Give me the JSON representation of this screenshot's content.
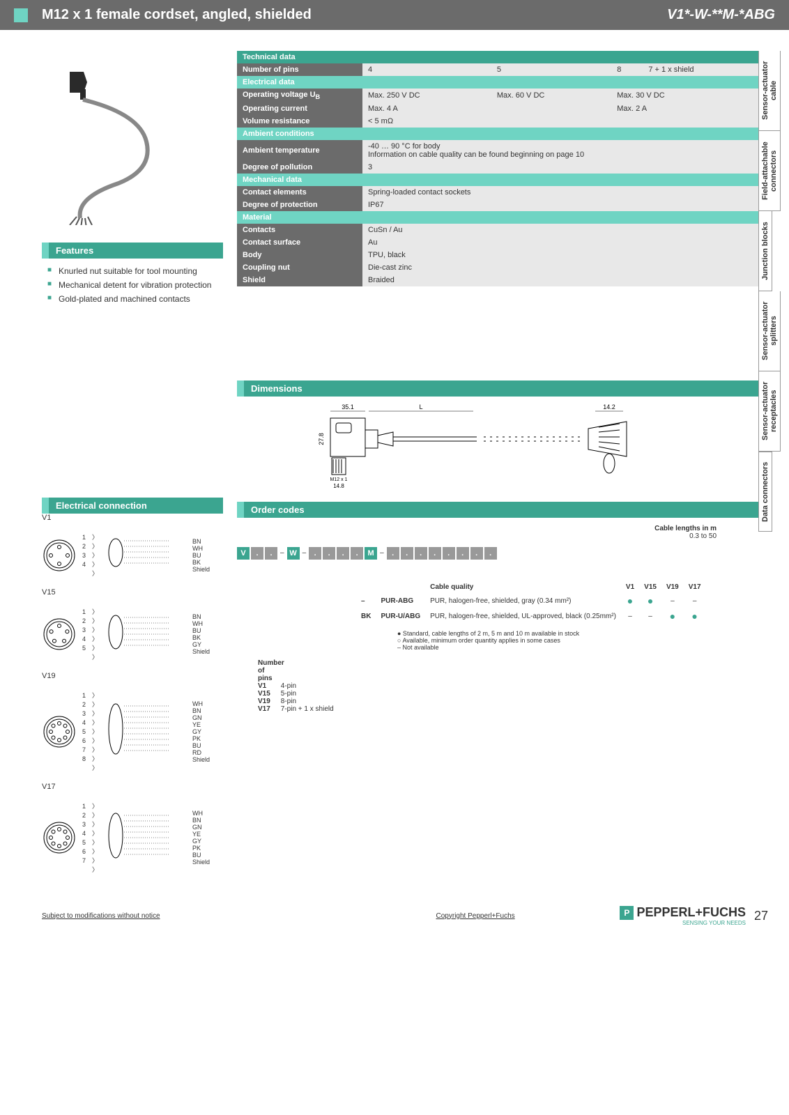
{
  "header": {
    "title": "M12 x 1 female cordset, angled, shielded",
    "code": "V1*-W-**M-*ABG"
  },
  "sidebar": [
    "Sensor-actuator cable",
    "Field-attachable connectors",
    "Junction blocks",
    "Sensor-actuator splitters",
    "Sensor-actuator receptacles",
    "Data connectors"
  ],
  "features": {
    "heading": "Features",
    "items": [
      "Knurled nut suitable for tool mounting",
      "Mechanical detent for vibration protection",
      "Gold-plated and machined contacts"
    ]
  },
  "tech": {
    "heading": "Technical data",
    "rows": [
      {
        "type": "label",
        "label": "Number of pins",
        "cells": [
          "4",
          "5",
          "8",
          "7 + 1 x shield"
        ]
      },
      {
        "type": "sub",
        "label": "Electrical data"
      },
      {
        "type": "label",
        "label": "Operating voltage UB",
        "cells": [
          "Max. 250 V DC",
          "Max. 60 V DC",
          "Max. 30 V DC",
          ""
        ],
        "merge": [
          0,
          0,
          1,
          1
        ]
      },
      {
        "type": "label",
        "label": "Operating current",
        "cells": [
          "Max. 4 A",
          "",
          "Max. 2 A",
          ""
        ],
        "merge": [
          1,
          1,
          1,
          1
        ]
      },
      {
        "type": "label",
        "label": "Volume resistance",
        "cells": [
          "< 5 mΩ"
        ],
        "span": 4
      },
      {
        "type": "sub",
        "label": "Ambient conditions"
      },
      {
        "type": "label",
        "label": "Ambient temperature",
        "cells": [
          "-40 … 90 °C for body\nInformation on cable quality can be found beginning on page 10"
        ],
        "span": 4
      },
      {
        "type": "label",
        "label": "Degree of pollution",
        "cells": [
          "3"
        ],
        "span": 4
      },
      {
        "type": "sub",
        "label": "Mechanical data"
      },
      {
        "type": "label",
        "label": "Contact elements",
        "cells": [
          "Spring-loaded contact sockets"
        ],
        "span": 4
      },
      {
        "type": "label",
        "label": "Degree of protection",
        "cells": [
          "IP67"
        ],
        "span": 4
      },
      {
        "type": "sub",
        "label": "Material"
      },
      {
        "type": "label",
        "label": "  Contacts",
        "cells": [
          "CuSn / Au"
        ],
        "span": 4
      },
      {
        "type": "label",
        "label": "  Contact surface",
        "cells": [
          "Au"
        ],
        "span": 4
      },
      {
        "type": "label",
        "label": "  Body",
        "cells": [
          "TPU, black"
        ],
        "span": 4
      },
      {
        "type": "label",
        "label": "  Coupling nut",
        "cells": [
          "Die-cast zinc"
        ],
        "span": 4
      },
      {
        "type": "label",
        "label": "Shield",
        "cells": [
          "Braided"
        ],
        "span": 4
      }
    ]
  },
  "dimensions": {
    "heading": "Dimensions",
    "values": {
      "w1": "35.1",
      "L": "L",
      "w2": "14.2",
      "h": "27.8",
      "thread": "M12 x 1",
      "tw": "14.8"
    }
  },
  "electrical": {
    "heading": "Electrical connection",
    "connectors": [
      {
        "name": "V1",
        "pins": 4,
        "colors": [
          "BN",
          "WH",
          "BU",
          "BK",
          "Shield"
        ]
      },
      {
        "name": "V15",
        "pins": 5,
        "colors": [
          "BN",
          "WH",
          "BU",
          "BK",
          "GY",
          "Shield"
        ]
      },
      {
        "name": "V19",
        "pins": 8,
        "colors": [
          "WH",
          "BN",
          "GN",
          "YE",
          "GY",
          "PK",
          "BU",
          "RD",
          "Shield"
        ]
      },
      {
        "name": "V17",
        "pins": 8,
        "colors": [
          "WH",
          "BN",
          "GN",
          "YE",
          "GY",
          "PK",
          "BU",
          "Shield"
        ]
      }
    ]
  },
  "order": {
    "heading": "Order codes",
    "code_template": [
      "V",
      ".",
      ".",
      " – ",
      "W",
      " – ",
      ".",
      ".",
      ".",
      ".",
      "M",
      " – ",
      ".",
      ".",
      ".",
      ".",
      ".",
      ".",
      ".",
      "."
    ],
    "cable_lengths_label": "Cable lengths in m",
    "cable_lengths_value": "0.3 to 50",
    "cable_quality": {
      "heading": "Cable quality",
      "cols": [
        "V1",
        "V15",
        "V19",
        "V17"
      ],
      "rows": [
        {
          "code": "–",
          "name": "PUR-ABG",
          "desc": "PUR, halogen-free, shielded, gray (0.34 mm²)",
          "marks": [
            "●",
            "●",
            "–",
            "–"
          ]
        },
        {
          "code": "BK",
          "name": "PUR-U/ABG",
          "desc": "PUR, halogen-free, shielded, UL-approved, black (0.25mm²)",
          "marks": [
            "–",
            "–",
            "●",
            "●"
          ]
        }
      ],
      "legend": [
        "●  Standard, cable lengths of 2 m, 5 m and 10 m available in stock",
        "○  Available, minimum order quantity applies in some cases",
        "–  Not available"
      ]
    },
    "pins": {
      "heading": "Number of pins",
      "rows": [
        {
          "code": "V1",
          "desc": "4-pin"
        },
        {
          "code": "V15",
          "desc": "5-pin"
        },
        {
          "code": "V19",
          "desc": "8-pin"
        },
        {
          "code": "V17",
          "desc": "7-pin + 1 x shield"
        }
      ]
    }
  },
  "footer": {
    "left": "Subject to modifications without notice",
    "mid": "Copyright Pepperl+Fuchs",
    "brand": "PEPPERL+FUCHS",
    "tagline": "SENSING YOUR NEEDS",
    "page": "27"
  }
}
